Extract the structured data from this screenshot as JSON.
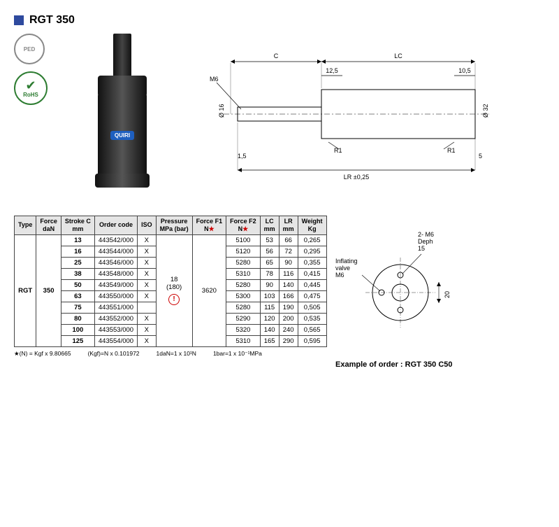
{
  "title": "RGT 350",
  "badges": {
    "ped": "PED",
    "rohs": "RoHS"
  },
  "brand_label": "QUIRI",
  "drawing": {
    "C": "C",
    "LC": "LC",
    "LR": "LR ±0,25",
    "M6": "M6",
    "d16": "Ø 16",
    "d32": "Ø 32",
    "t12_5": "12,5",
    "t10_5": "10,5",
    "t1_5": "1,5",
    "t5": "5",
    "R1a": "R1",
    "R1b": "R1"
  },
  "table": {
    "headers": {
      "type": "Type",
      "force_dan": "Force\ndaN",
      "stroke": "Stroke C\nmm",
      "order_code": "Order code",
      "iso": "ISO",
      "pressure": "Pressure\nMPa (bar)",
      "f1": "Force F1\nN★",
      "f2": "Force F2\nN★",
      "lc": "LC\nmm",
      "lr": "LR\nmm",
      "weight": "Weight\nKg"
    },
    "type_value": "RGT",
    "force_value": "350",
    "pressure_value": "18\n(180)",
    "f1_value": "3620",
    "rows": [
      {
        "stroke": "13",
        "code": "443542/000",
        "iso": "X",
        "f2": "5100",
        "lc": "53",
        "lr": "66",
        "w": "0,265"
      },
      {
        "stroke": "16",
        "code": "443544/000",
        "iso": "X",
        "f2": "5120",
        "lc": "56",
        "lr": "72",
        "w": "0,295"
      },
      {
        "stroke": "25",
        "code": "443546/000",
        "iso": "X",
        "f2": "5280",
        "lc": "65",
        "lr": "90",
        "w": "0,355"
      },
      {
        "stroke": "38",
        "code": "443548/000",
        "iso": "X",
        "f2": "5310",
        "lc": "78",
        "lr": "116",
        "w": "0,415"
      },
      {
        "stroke": "50",
        "code": "443549/000",
        "iso": "X",
        "f2": "5280",
        "lc": "90",
        "lr": "140",
        "w": "0,445"
      },
      {
        "stroke": "63",
        "code": "443550/000",
        "iso": "X",
        "f2": "5300",
        "lc": "103",
        "lr": "166",
        "w": "0,475"
      },
      {
        "stroke": "75",
        "code": "443551/000",
        "iso": "",
        "f2": "5280",
        "lc": "115",
        "lr": "190",
        "w": "0,505"
      },
      {
        "stroke": "80",
        "code": "443552/000",
        "iso": "X",
        "f2": "5290",
        "lc": "120",
        "lr": "200",
        "w": "0,535"
      },
      {
        "stroke": "100",
        "code": "443553/000",
        "iso": "X",
        "f2": "5320",
        "lc": "140",
        "lr": "240",
        "w": "0,565"
      },
      {
        "stroke": "125",
        "code": "443554/000",
        "iso": "X",
        "f2": "5310",
        "lc": "165",
        "lr": "290",
        "w": "0,595"
      }
    ]
  },
  "footnotes": {
    "n1": "★(N) = Kgf x 9.80665",
    "n2": "(Kgf)=N x 0.101972",
    "n3": "1daN=1 x 10¹N",
    "n4": "1bar=1 x 10⁻¹MPa"
  },
  "side": {
    "inflating": "Inflating\nvalve\nM6",
    "holes": "2- M6\nDeph\n15",
    "dim20": "20"
  },
  "example_order": "Example of order : RGT 350 C50",
  "colors": {
    "accent": "#2e4a9e",
    "green": "#2e7d32",
    "header_bg": "#e5e5e5"
  }
}
